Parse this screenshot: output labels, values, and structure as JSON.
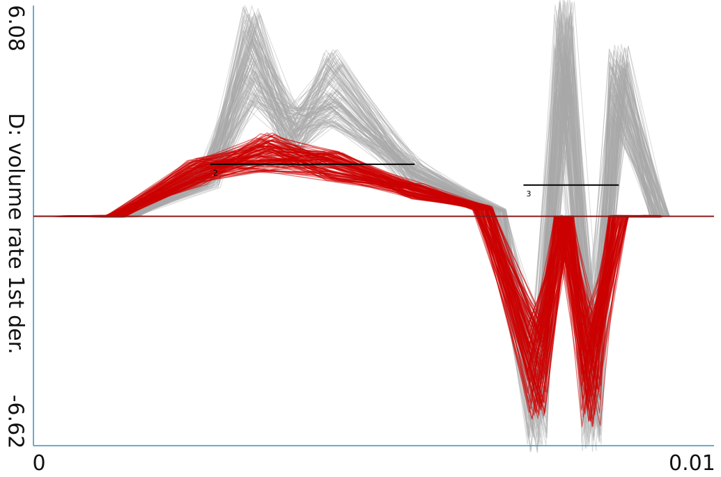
{
  "chart_data": {
    "type": "line",
    "ylabel": "D: volume rate 1st der.",
    "y_max_label": "6.08",
    "y_min_label": "-6.62",
    "x_min_label": "0",
    "x_max_label": "0.01",
    "xlim": [
      0,
      0.01
    ],
    "ylim": [
      -6.62,
      6.08
    ],
    "baseline": 0,
    "colors": {
      "highlighted": "#cc0000",
      "background": "#a8a8a8",
      "axis": "#3a8fb5",
      "marker": "#000000"
    },
    "series": [
      {
        "group": "highlighted",
        "count": 110,
        "x": [
          0.0012,
          0.0024,
          0.0034,
          0.0044,
          0.0056,
          0.0066,
          0.0074,
          0.0078,
          0.0082,
          0.0086,
          0.0091
        ],
        "y": [
          0.0,
          1.6,
          2.3,
          1.8,
          0.9,
          0.3,
          -5.6,
          0.0,
          -5.8,
          0.0,
          0.0
        ]
      },
      {
        "group": "background",
        "count": 140,
        "x": [
          0.0014,
          0.0026,
          0.0032,
          0.0038,
          0.0044,
          0.0056,
          0.0068,
          0.0074,
          0.0078,
          0.0082,
          0.0086,
          0.0092
        ],
        "y": [
          0.0,
          1.5,
          5.8,
          3.0,
          4.6,
          1.5,
          0.2,
          -6.5,
          6.0,
          -6.5,
          4.8,
          0.0
        ]
      }
    ],
    "annotations": [
      {
        "label": "2",
        "x_start": 0.0026,
        "x_end": 0.0056,
        "y": 1.5
      },
      {
        "label": "3",
        "x_start": 0.0072,
        "x_end": 0.0086,
        "y": 0.9
      }
    ]
  }
}
